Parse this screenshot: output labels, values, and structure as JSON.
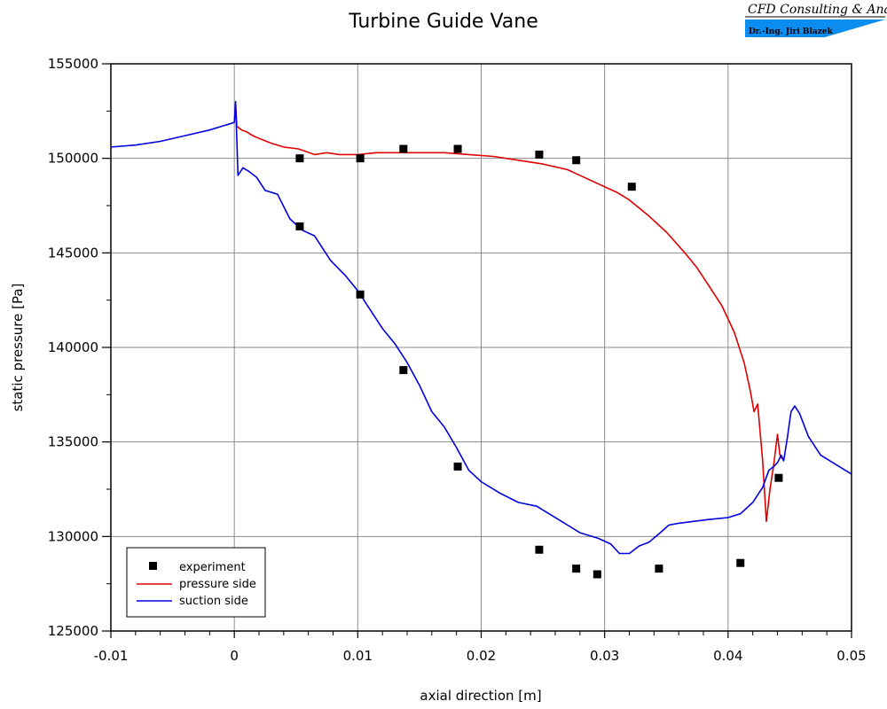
{
  "logo": {
    "company": "CFD Consulting & Analysis",
    "person": "Dr.-Ing. Jiri Blazek",
    "accent_color": "#0a8cf0"
  },
  "chart_data": {
    "type": "line",
    "title": "Turbine Guide Vane",
    "xlabel": "axial direction [m]",
    "ylabel": "static pressure [Pa]",
    "xlim": [
      -0.01,
      0.05
    ],
    "ylim": [
      125000,
      155000
    ],
    "xticks": [
      -0.01,
      0,
      0.01,
      0.02,
      0.03,
      0.04,
      0.05
    ],
    "xtick_labels": [
      "-0.01",
      "0",
      "0.01",
      "0.02",
      "0.03",
      "0.04",
      "0.05"
    ],
    "yticks": [
      125000,
      130000,
      135000,
      140000,
      145000,
      150000,
      155000
    ],
    "ytick_labels": [
      "125000",
      "130000",
      "135000",
      "140000",
      "145000",
      "150000",
      "155000"
    ],
    "grid": true,
    "legend_position": "bottom-left",
    "series": [
      {
        "name": "experiment",
        "kind": "scatter",
        "color": "#000000",
        "points": [
          [
            0.0053,
            150000
          ],
          [
            0.0102,
            150000
          ],
          [
            0.0137,
            150500
          ],
          [
            0.0181,
            150500
          ],
          [
            0.0247,
            150200
          ],
          [
            0.0277,
            149900
          ],
          [
            0.0322,
            148500
          ],
          [
            0.0053,
            146400
          ],
          [
            0.0102,
            142800
          ],
          [
            0.0137,
            138800
          ],
          [
            0.0181,
            133700
          ],
          [
            0.0247,
            129300
          ],
          [
            0.0277,
            128300
          ],
          [
            0.0294,
            128000
          ],
          [
            0.0344,
            128300
          ],
          [
            0.041,
            128600
          ],
          [
            0.0441,
            133100
          ]
        ]
      },
      {
        "name": "pressure side",
        "kind": "line",
        "color": "#e00000",
        "points": [
          [
            0.0001,
            152900
          ],
          [
            0.0002,
            151700
          ],
          [
            0.0006,
            151500
          ],
          [
            0.001,
            151400
          ],
          [
            0.0015,
            151200
          ],
          [
            0.0022,
            151000
          ],
          [
            0.003,
            150800
          ],
          [
            0.004,
            150600
          ],
          [
            0.0052,
            150500
          ],
          [
            0.0065,
            150200
          ],
          [
            0.0075,
            150300
          ],
          [
            0.0085,
            150200
          ],
          [
            0.01,
            150200
          ],
          [
            0.0115,
            150300
          ],
          [
            0.013,
            150300
          ],
          [
            0.015,
            150300
          ],
          [
            0.017,
            150300
          ],
          [
            0.019,
            150200
          ],
          [
            0.021,
            150100
          ],
          [
            0.023,
            149900
          ],
          [
            0.025,
            149700
          ],
          [
            0.027,
            149400
          ],
          [
            0.029,
            148800
          ],
          [
            0.031,
            148200
          ],
          [
            0.032,
            147800
          ],
          [
            0.0335,
            147000
          ],
          [
            0.035,
            146100
          ],
          [
            0.0365,
            145000
          ],
          [
            0.0375,
            144200
          ],
          [
            0.0385,
            143200
          ],
          [
            0.0395,
            142200
          ],
          [
            0.0405,
            140800
          ],
          [
            0.0413,
            139200
          ],
          [
            0.0418,
            137700
          ],
          [
            0.0421,
            136600
          ],
          [
            0.0424,
            137000
          ],
          [
            0.0428,
            134000
          ],
          [
            0.0431,
            130800
          ],
          [
            0.0434,
            132500
          ],
          [
            0.0437,
            133800
          ],
          [
            0.044,
            135400
          ],
          [
            0.0442,
            134300
          ],
          [
            0.0444,
            134100
          ]
        ]
      },
      {
        "name": "suction side",
        "kind": "line",
        "color": "#0000e0",
        "points": [
          [
            -0.01,
            150600
          ],
          [
            -0.008,
            150700
          ],
          [
            -0.006,
            150900
          ],
          [
            -0.004,
            151200
          ],
          [
            -0.002,
            151500
          ],
          [
            -0.0005,
            151800
          ],
          [
            0.0,
            151900
          ],
          [
            0.0001,
            153000
          ],
          [
            0.0003,
            149100
          ],
          [
            0.0007,
            149500
          ],
          [
            0.0012,
            149300
          ],
          [
            0.0018,
            149000
          ],
          [
            0.0025,
            148300
          ],
          [
            0.0035,
            148100
          ],
          [
            0.0045,
            146800
          ],
          [
            0.0055,
            146200
          ],
          [
            0.0065,
            145900
          ],
          [
            0.0078,
            144600
          ],
          [
            0.009,
            143800
          ],
          [
            0.01,
            143000
          ],
          [
            0.011,
            142000
          ],
          [
            0.012,
            141000
          ],
          [
            0.013,
            140200
          ],
          [
            0.014,
            139200
          ],
          [
            0.015,
            138000
          ],
          [
            0.016,
            136600
          ],
          [
            0.017,
            135800
          ],
          [
            0.018,
            134700
          ],
          [
            0.019,
            133500
          ],
          [
            0.02,
            132900
          ],
          [
            0.0215,
            132300
          ],
          [
            0.023,
            131800
          ],
          [
            0.0245,
            131600
          ],
          [
            0.0255,
            131200
          ],
          [
            0.027,
            130600
          ],
          [
            0.028,
            130200
          ],
          [
            0.0295,
            129900
          ],
          [
            0.0305,
            129600
          ],
          [
            0.0312,
            129100
          ],
          [
            0.032,
            129100
          ],
          [
            0.0328,
            129500
          ],
          [
            0.0336,
            129700
          ],
          [
            0.0345,
            130200
          ],
          [
            0.0352,
            130600
          ],
          [
            0.036,
            130700
          ],
          [
            0.0372,
            130800
          ],
          [
            0.0385,
            130900
          ],
          [
            0.04,
            131000
          ],
          [
            0.041,
            131200
          ],
          [
            0.042,
            131800
          ],
          [
            0.0428,
            132600
          ],
          [
            0.0433,
            133500
          ],
          [
            0.0437,
            133700
          ],
          [
            0.044,
            133900
          ],
          [
            0.0443,
            134300
          ],
          [
            0.0445,
            134000
          ],
          [
            0.0448,
            135200
          ],
          [
            0.0451,
            136600
          ],
          [
            0.0454,
            136900
          ],
          [
            0.0458,
            136500
          ],
          [
            0.0465,
            135300
          ],
          [
            0.0475,
            134300
          ],
          [
            0.049,
            133700
          ],
          [
            0.05,
            133300
          ]
        ]
      }
    ]
  }
}
